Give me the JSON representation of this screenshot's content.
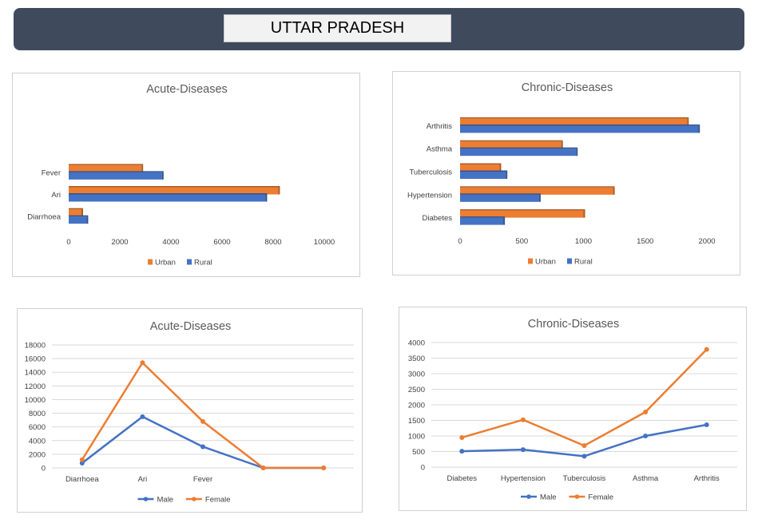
{
  "header": {
    "title": "UTTAR PRADESH"
  },
  "colors": {
    "urban": "#ed7d31",
    "rural": "#4472c4",
    "male": "#4472c4",
    "female": "#ed7d31",
    "banner": "#3f4a5c"
  },
  "chart_data": [
    {
      "type": "bar",
      "orientation": "horizontal",
      "title": "Acute-Diseases",
      "categories": [
        "Diarrhoea",
        "Ari",
        "Fever"
      ],
      "series": [
        {
          "name": "Urban",
          "values": [
            500,
            8200,
            2850
          ]
        },
        {
          "name": "Rural",
          "values": [
            700,
            7700,
            3650
          ]
        }
      ],
      "xlim": [
        0,
        10000
      ],
      "xticks": [
        "0",
        "2000",
        "4000",
        "6000",
        "8000",
        "10000"
      ],
      "legend": "bottom"
    },
    {
      "type": "bar",
      "orientation": "horizontal",
      "title": "Chronic-Diseases",
      "categories": [
        "Diabetes",
        "Hypertension",
        "Tuberculosis",
        "Asthma",
        "Arthritis"
      ],
      "series": [
        {
          "name": "Urban",
          "values": [
            1000,
            1240,
            320,
            820,
            1840
          ]
        },
        {
          "name": "Rural",
          "values": [
            350,
            640,
            370,
            940,
            1930
          ]
        }
      ],
      "xlim": [
        0,
        2000
      ],
      "xticks": [
        "0",
        "500",
        "1000",
        "1500",
        "2000"
      ],
      "legend": "bottom"
    },
    {
      "type": "line",
      "title": "Acute-Diseases",
      "categories": [
        "Diarrhoea",
        "Ari",
        "Fever",
        "",
        ""
      ],
      "series": [
        {
          "name": "Male",
          "values": [
            700,
            7500,
            3100,
            0,
            0
          ]
        },
        {
          "name": "Female",
          "values": [
            1200,
            15400,
            6800,
            0,
            0
          ]
        }
      ],
      "ylim": [
        0,
        18000
      ],
      "yticks": [
        "0",
        "2000",
        "4000",
        "6000",
        "8000",
        "10000",
        "12000",
        "14000",
        "16000",
        "18000"
      ],
      "grid": true,
      "legend": "bottom"
    },
    {
      "type": "line",
      "title": "Chronic-Diseases",
      "categories": [
        "Diabetes",
        "Hypertension",
        "Tuberculosis",
        "Asthma",
        "Arthritis"
      ],
      "series": [
        {
          "name": "Male",
          "values": [
            510,
            560,
            350,
            1000,
            1360
          ]
        },
        {
          "name": "Female",
          "values": [
            950,
            1520,
            690,
            1770,
            3780
          ]
        }
      ],
      "ylim": [
        0,
        4000
      ],
      "yticks": [
        "0",
        "500",
        "1000",
        "1500",
        "2000",
        "2500",
        "3000",
        "3500",
        "4000"
      ],
      "grid": true,
      "legend": "bottom"
    }
  ]
}
